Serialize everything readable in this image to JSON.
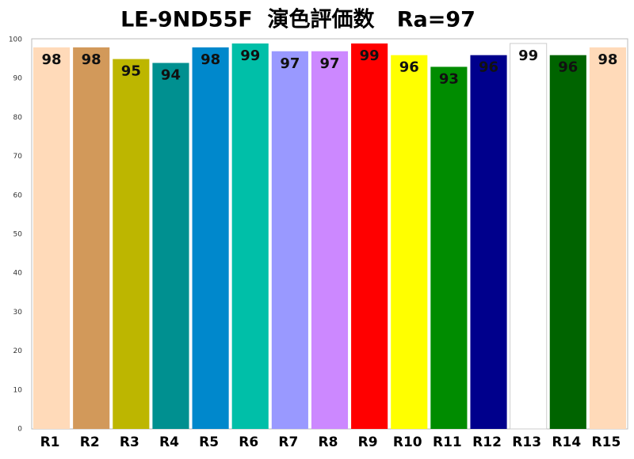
{
  "chart_data": {
    "type": "bar",
    "title": "LE-9ND55F  演色評価数   Ra=97",
    "categories": [
      "R1",
      "R2",
      "R3",
      "R4",
      "R5",
      "R6",
      "R7",
      "R8",
      "R9",
      "R10",
      "R11",
      "R12",
      "R13",
      "R14",
      "R15"
    ],
    "values": [
      98,
      98,
      95,
      94,
      98,
      99,
      97,
      97,
      99,
      96,
      93,
      96,
      99,
      96,
      98
    ],
    "colors": [
      "#ffdab9",
      "#d2995a",
      "#bdb600",
      "#009090",
      "#0088cc",
      "#00bfa8",
      "#9999ff",
      "#cc88ff",
      "#ff0000",
      "#ffff00",
      "#008c00",
      "#00008c",
      "#ffffff",
      "#006400",
      "#ffdab9"
    ],
    "ylim": [
      0,
      100
    ],
    "yticks": [
      0,
      10,
      20,
      30,
      40,
      50,
      60,
      70,
      80,
      90,
      100
    ],
    "grid": false
  }
}
